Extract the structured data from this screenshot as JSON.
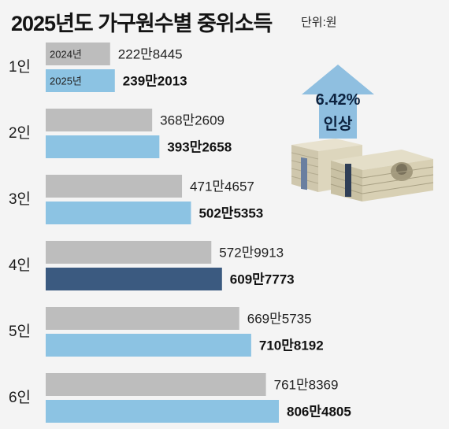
{
  "title": "2025년도 가구원수별 중위소득",
  "unit": "단위:원",
  "badge": {
    "percent": "6.42%",
    "word": "인상",
    "arrow_color": "#8fbfe0",
    "text_color": "#0d2340"
  },
  "illustration": {
    "icon": "cash-stacks-icon"
  },
  "chart_data": {
    "type": "bar",
    "orientation": "horizontal",
    "categories": [
      "1인",
      "2인",
      "3인",
      "4인",
      "5인",
      "6인"
    ],
    "series": [
      {
        "name": "2024년",
        "values": [
          2228445,
          3682609,
          4714657,
          5729913,
          6695735,
          7618369
        ],
        "labels": [
          "222만8445",
          "368만2609",
          "471만4657",
          "572만9913",
          "669만5735",
          "761만8369"
        ],
        "color": "#bdbdbd"
      },
      {
        "name": "2025년",
        "values": [
          2392013,
          3932658,
          5025353,
          6097773,
          7108192,
          8064805
        ],
        "labels": [
          "239만2013",
          "393만2658",
          "502만5353",
          "609만7773",
          "710만8192",
          "806만4805"
        ],
        "color": "#8cc3e3",
        "highlight_index": 3,
        "highlight_color": "#3b5a80",
        "highlight_label_color": "#3b6fa8"
      }
    ],
    "xlim": [
      0,
      8064805
    ],
    "legend": "inside-first-bars",
    "grid": false
  }
}
